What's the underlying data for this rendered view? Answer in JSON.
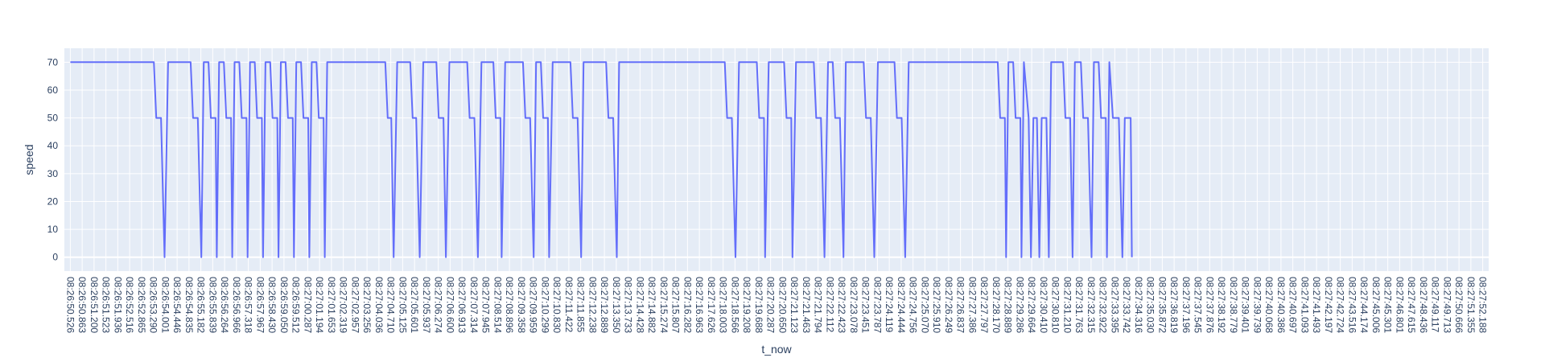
{
  "chart_data": {
    "type": "line",
    "title": "",
    "xlabel": "t_now",
    "ylabel": "speed",
    "ylim": [
      -5,
      75
    ],
    "yticks": [
      0,
      10,
      20,
      30,
      40,
      50,
      60,
      70
    ],
    "grid": true,
    "legend": "none",
    "colors": {
      "line": "#636efa",
      "plot_bg": "#e5ecf6",
      "grid": "#ffffff",
      "text": "#2a3f5f"
    },
    "categories": [
      "08:26:50.526",
      "08:26:50.863",
      "08:26:51.200",
      "08:26:51.523",
      "08:26:51.936",
      "08:26:52.516",
      "08:26:52.865",
      "08:26:53.290",
      "08:26:54.001",
      "08:26:54.446",
      "08:26:54.835",
      "08:26:55.182",
      "08:26:55.839",
      "08:26:56.264",
      "08:26:56.966",
      "08:26:57.318",
      "08:26:57.967",
      "08:26:58.430",
      "08:26:59.050",
      "08:26:59.512",
      "08:27:00.287",
      "08:27:01.194",
      "08:27:01.653",
      "08:27:02.319",
      "08:27:02.957",
      "08:27:03.256",
      "08:27:04.036",
      "08:27:04.710",
      "08:27:05.125",
      "08:27:05.601",
      "08:27:05.937",
      "08:27:06.274",
      "08:27:06.600",
      "08:27:06.913",
      "08:27:07.314",
      "08:27:07.945",
      "08:27:08.514",
      "08:27:08.896",
      "08:27:09.358",
      "08:27:09.959",
      "08:27:10.299",
      "08:27:10.830",
      "08:27:11.422",
      "08:27:11.855",
      "08:27:12.238",
      "08:27:12.889",
      "08:27:13.350",
      "08:27:13.733",
      "08:27:14.428",
      "08:27:14.882",
      "08:27:15.274",
      "08:27:15.807",
      "08:27:16.282",
      "08:27:16.963",
      "08:27:17.626",
      "08:27:18.003",
      "08:27:18.566",
      "08:27:19.208",
      "08:27:19.688",
      "08:27:20.287",
      "08:27:20.650",
      "08:27:21.123",
      "08:27:21.463",
      "08:27:21.794",
      "08:27:22.112",
      "08:27:22.423",
      "08:27:23.078",
      "08:27:23.451",
      "08:27:23.787",
      "08:27:24.119",
      "08:27:24.444",
      "08:27:24.756",
      "08:27:25.070",
      "08:27:25.910",
      "08:27:26.249",
      "08:27:26.837",
      "08:27:27.386",
      "08:27:27.797",
      "08:27:28.170",
      "08:27:28.889",
      "08:27:29.286",
      "08:27:29.664",
      "08:27:30.410",
      "08:27:30.810",
      "08:27:31.210",
      "08:27:31.763",
      "08:27:32.315",
      "08:27:32.922",
      "08:27:33.395",
      "08:27:33.742",
      "08:27:34.316",
      "08:27:35.030",
      "08:27:35.872",
      "08:27:36.819",
      "08:27:37.196",
      "08:27:37.545",
      "08:27:37.876",
      "08:27:38.192",
      "08:27:38.779",
      "08:27:39.401",
      "08:27:39.739",
      "08:27:40.068",
      "08:27:40.386",
      "08:27:40.697",
      "08:27:41.093",
      "08:27:41.493",
      "08:27:42.197",
      "08:27:42.724",
      "08:27:43.516",
      "08:27:44.174",
      "08:27:45.006",
      "08:27:45.301",
      "08:27:46.801",
      "08:27:47.615",
      "08:27:48.436",
      "08:27:49.117",
      "08:27:49.713",
      "08:27:50.666",
      "08:27:51.355",
      "08:27:52.188"
    ],
    "series": [
      {
        "points": [
          [
            0,
            70
          ],
          [
            7.04,
            70
          ],
          [
            7.24,
            50
          ],
          [
            7.64,
            50
          ],
          [
            7.94,
            0
          ],
          [
            8.24,
            70
          ],
          [
            10.14,
            70
          ],
          [
            10.34,
            50
          ],
          [
            10.74,
            50
          ],
          [
            11.04,
            0
          ],
          [
            11.24,
            70
          ],
          [
            11.64,
            70
          ],
          [
            11.84,
            50
          ],
          [
            12.24,
            50
          ],
          [
            12.34,
            0
          ],
          [
            12.54,
            70
          ],
          [
            12.94,
            70
          ],
          [
            13.14,
            50
          ],
          [
            13.54,
            50
          ],
          [
            13.64,
            0
          ],
          [
            13.84,
            70
          ],
          [
            14.24,
            70
          ],
          [
            14.44,
            50
          ],
          [
            14.84,
            50
          ],
          [
            14.94,
            0
          ],
          [
            15.14,
            70
          ],
          [
            15.54,
            70
          ],
          [
            15.74,
            50
          ],
          [
            16.14,
            50
          ],
          [
            16.24,
            0
          ],
          [
            16.44,
            70
          ],
          [
            16.84,
            70
          ],
          [
            17.04,
            50
          ],
          [
            17.44,
            50
          ],
          [
            17.54,
            0
          ],
          [
            17.74,
            70
          ],
          [
            18.14,
            70
          ],
          [
            18.34,
            50
          ],
          [
            18.74,
            50
          ],
          [
            18.84,
            0
          ],
          [
            19.04,
            70
          ],
          [
            19.44,
            70
          ],
          [
            19.64,
            50
          ],
          [
            20.04,
            50
          ],
          [
            20.14,
            0
          ],
          [
            20.34,
            70
          ],
          [
            20.74,
            70
          ],
          [
            20.94,
            50
          ],
          [
            21.34,
            50
          ],
          [
            21.44,
            0
          ],
          [
            21.64,
            70
          ],
          [
            26.54,
            70
          ],
          [
            26.74,
            50
          ],
          [
            27.04,
            50
          ],
          [
            27.24,
            0
          ],
          [
            27.54,
            70
          ],
          [
            28.64,
            70
          ],
          [
            28.84,
            50
          ],
          [
            29.14,
            50
          ],
          [
            29.44,
            0
          ],
          [
            29.74,
            70
          ],
          [
            30.84,
            70
          ],
          [
            31.04,
            50
          ],
          [
            31.44,
            50
          ],
          [
            31.64,
            0
          ],
          [
            31.94,
            70
          ],
          [
            33.44,
            70
          ],
          [
            33.64,
            50
          ],
          [
            34.04,
            50
          ],
          [
            34.34,
            0
          ],
          [
            34.64,
            70
          ],
          [
            35.64,
            70
          ],
          [
            35.84,
            50
          ],
          [
            36.24,
            50
          ],
          [
            36.34,
            0
          ],
          [
            36.64,
            70
          ],
          [
            38.14,
            70
          ],
          [
            38.34,
            50
          ],
          [
            38.74,
            50
          ],
          [
            39.04,
            0
          ],
          [
            39.24,
            70
          ],
          [
            39.64,
            70
          ],
          [
            39.84,
            50
          ],
          [
            40.24,
            50
          ],
          [
            40.34,
            0
          ],
          [
            40.64,
            70
          ],
          [
            42.14,
            70
          ],
          [
            42.34,
            50
          ],
          [
            42.74,
            50
          ],
          [
            43.04,
            0
          ],
          [
            43.24,
            70
          ],
          [
            45.14,
            70
          ],
          [
            45.34,
            50
          ],
          [
            45.74,
            50
          ],
          [
            46.04,
            0
          ],
          [
            46.24,
            70
          ],
          [
            55.14,
            70
          ],
          [
            55.34,
            50
          ],
          [
            55.74,
            50
          ],
          [
            56.04,
            0
          ],
          [
            56.34,
            70
          ],
          [
            57.84,
            70
          ],
          [
            58.04,
            50
          ],
          [
            58.44,
            50
          ],
          [
            58.54,
            0
          ],
          [
            58.84,
            70
          ],
          [
            60.14,
            70
          ],
          [
            60.34,
            50
          ],
          [
            60.74,
            50
          ],
          [
            60.84,
            0
          ],
          [
            61.14,
            70
          ],
          [
            62.64,
            70
          ],
          [
            62.84,
            50
          ],
          [
            63.24,
            50
          ],
          [
            63.54,
            0
          ],
          [
            63.84,
            70
          ],
          [
            64.24,
            70
          ],
          [
            64.44,
            50
          ],
          [
            64.84,
            50
          ],
          [
            65.14,
            0
          ],
          [
            65.34,
            70
          ],
          [
            66.84,
            70
          ],
          [
            67.04,
            50
          ],
          [
            67.44,
            50
          ],
          [
            67.74,
            0
          ],
          [
            68.04,
            70
          ],
          [
            69.44,
            70
          ],
          [
            69.64,
            50
          ],
          [
            70.04,
            50
          ],
          [
            70.34,
            0
          ],
          [
            70.64,
            70
          ],
          [
            78.14,
            70
          ],
          [
            78.34,
            50
          ],
          [
            78.74,
            50
          ],
          [
            78.84,
            0
          ],
          [
            79.04,
            70
          ],
          [
            79.44,
            70
          ],
          [
            79.64,
            50
          ],
          [
            80.04,
            50
          ],
          [
            80.14,
            0
          ],
          [
            80.34,
            70
          ],
          [
            80.74,
            50
          ],
          [
            80.94,
            0
          ],
          [
            81.14,
            50
          ],
          [
            81.44,
            50
          ],
          [
            81.64,
            0
          ],
          [
            81.84,
            50
          ],
          [
            82.24,
            50
          ],
          [
            82.44,
            0
          ],
          [
            82.64,
            70
          ],
          [
            83.64,
            70
          ],
          [
            83.84,
            50
          ],
          [
            84.24,
            50
          ],
          [
            84.44,
            0
          ],
          [
            84.64,
            70
          ],
          [
            85.14,
            70
          ],
          [
            85.34,
            50
          ],
          [
            85.74,
            50
          ],
          [
            86.04,
            0
          ],
          [
            86.24,
            70
          ],
          [
            86.64,
            70
          ],
          [
            86.84,
            50
          ],
          [
            87.24,
            50
          ],
          [
            87.34,
            0
          ],
          [
            87.54,
            70
          ],
          [
            87.84,
            50
          ],
          [
            88.34,
            50
          ],
          [
            88.64,
            0
          ],
          [
            88.84,
            50
          ],
          [
            89.34,
            50
          ],
          [
            89.44,
            0
          ]
        ]
      }
    ]
  }
}
